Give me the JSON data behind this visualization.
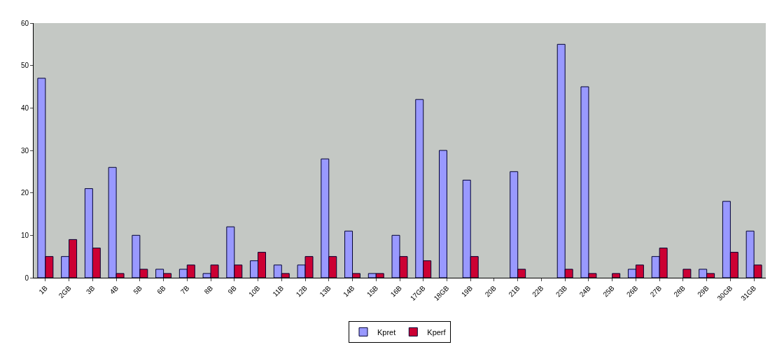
{
  "chart_data": {
    "type": "bar",
    "categories": [
      "1B",
      "2GB",
      "3B",
      "4B",
      "5B",
      "6B",
      "7B",
      "8B",
      "9B",
      "10B",
      "11B",
      "12B",
      "13B",
      "14B",
      "15B",
      "16B",
      "17GB",
      "18GB",
      "19B",
      "20B",
      "21B",
      "22B",
      "23B",
      "24B",
      "25B",
      "26B",
      "27B",
      "28B",
      "29B",
      "30GB",
      "31GB"
    ],
    "series": [
      {
        "name": "Kpret",
        "color": "#9999ff",
        "values": [
          47,
          5,
          21,
          26,
          10,
          2,
          2,
          1,
          12,
          4,
          3,
          3,
          28,
          11,
          1,
          10,
          42,
          30,
          23,
          0,
          25,
          0,
          55,
          45,
          0,
          2,
          5,
          0,
          2,
          18,
          11
        ]
      },
      {
        "name": "Kperf",
        "color": "#cc0033",
        "values": [
          5,
          9,
          7,
          1,
          2,
          1,
          3,
          3,
          3,
          6,
          1,
          5,
          5,
          1,
          1,
          5,
          4,
          0,
          5,
          0,
          2,
          0,
          2,
          1,
          1,
          3,
          7,
          2,
          1,
          6,
          3
        ]
      }
    ],
    "ylim": [
      0,
      60
    ],
    "yticks": [
      0,
      10,
      20,
      30,
      40,
      50,
      60
    ],
    "grid": false,
    "legend": "bottom"
  }
}
